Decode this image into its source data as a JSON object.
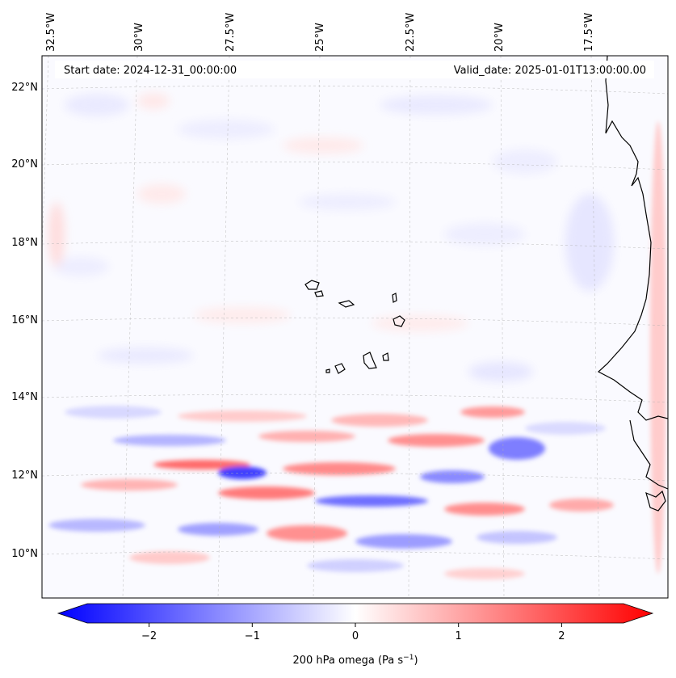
{
  "header": {
    "start_date": "Start date: 2024-12-31_00:00:00",
    "valid_date": "Valid_date: 2025-01-01T13:00:00.00"
  },
  "longitude_labels": [
    "32.5°W",
    "30°W",
    "27.5°W",
    "25°W",
    "22.5°W",
    "20°W",
    "17.5°W"
  ],
  "latitude_labels": [
    "22°N",
    "20°N",
    "18°N",
    "16°N",
    "14°N",
    "12°N",
    "10°N"
  ],
  "colorbar": {
    "label_main": "200 hPa omega (Pa s",
    "label_sup": "−1",
    "label_end": ")",
    "ticks": [
      "−2",
      "−1",
      "0",
      "1",
      "2"
    ],
    "tick_values": [
      -2,
      -1,
      0,
      1,
      2
    ],
    "range": [
      -2.6,
      2.6
    ],
    "colormap": "bwr",
    "low_color": "#0000ff",
    "mid_color": "#ffffff",
    "high_color": "#ff0000"
  },
  "colors": {
    "coastline": "#000000",
    "gridline": "#b0b0b0"
  }
}
